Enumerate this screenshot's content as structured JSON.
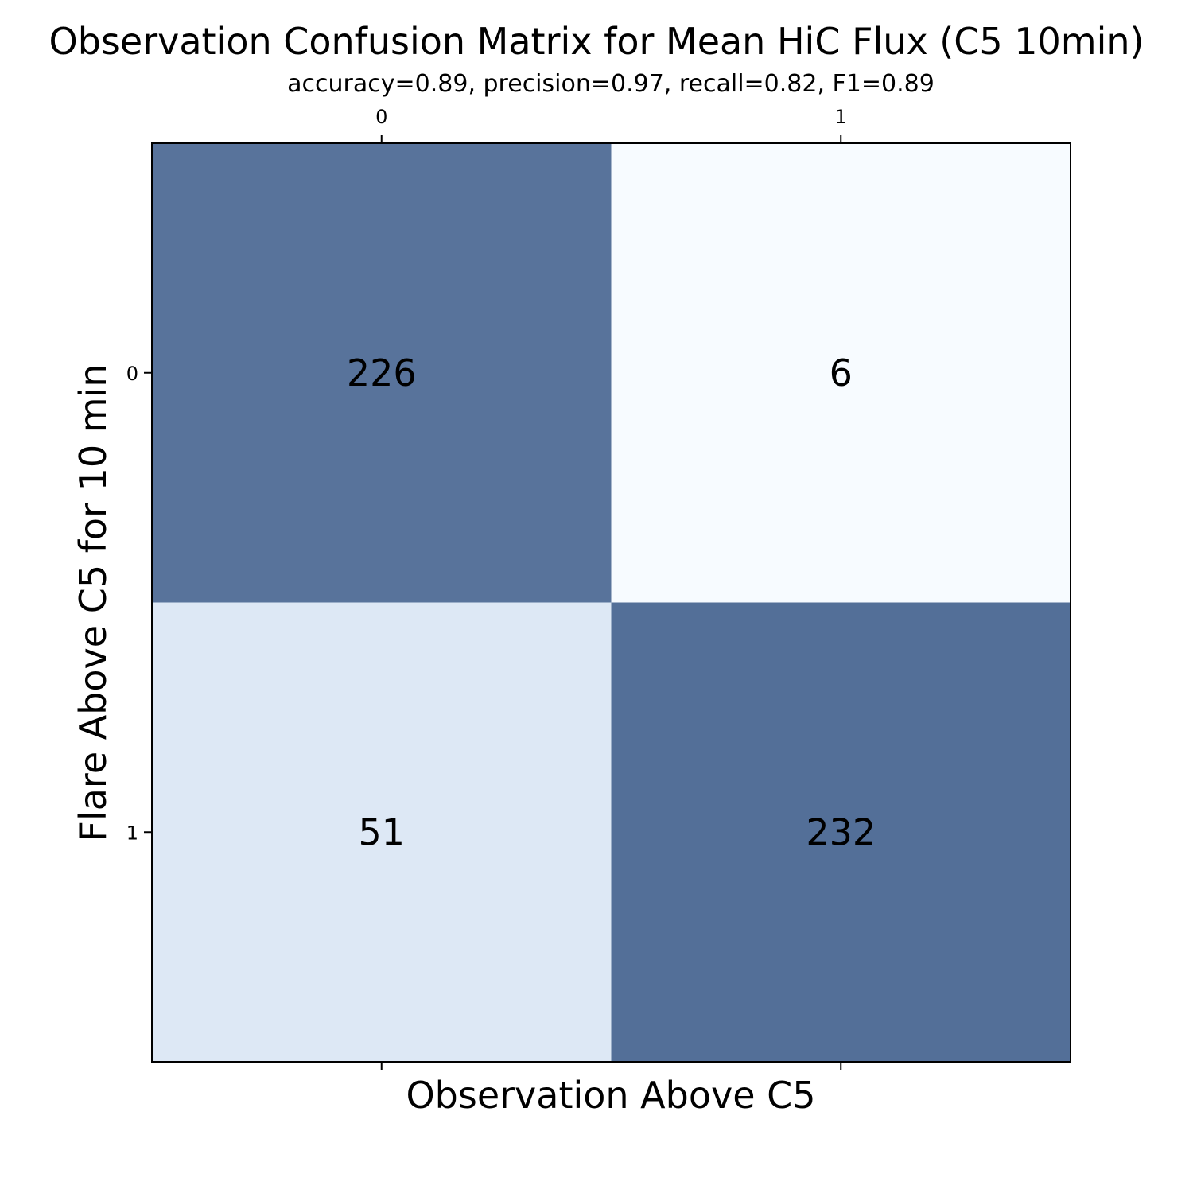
{
  "chart_data": {
    "type": "heatmap",
    "title": "Observation Confusion Matrix for Mean HiC Flux (C5 10min)",
    "subtitle": "accuracy=0.89, precision=0.97, recall=0.82, F1=0.89",
    "xlabel": "Observation Above C5",
    "ylabel": "Flare Above C5 for 10 min",
    "x_categories": [
      "0",
      "1"
    ],
    "y_categories": [
      "0",
      "1"
    ],
    "values": [
      [
        226,
        6
      ],
      [
        51,
        232
      ]
    ],
    "x_tick_position": "top and bottom (labels on top)",
    "grid": false,
    "legend": false,
    "colormap": {
      "low": "#f7fbff",
      "mid": "#dde8f5",
      "high": "#536f98"
    }
  }
}
